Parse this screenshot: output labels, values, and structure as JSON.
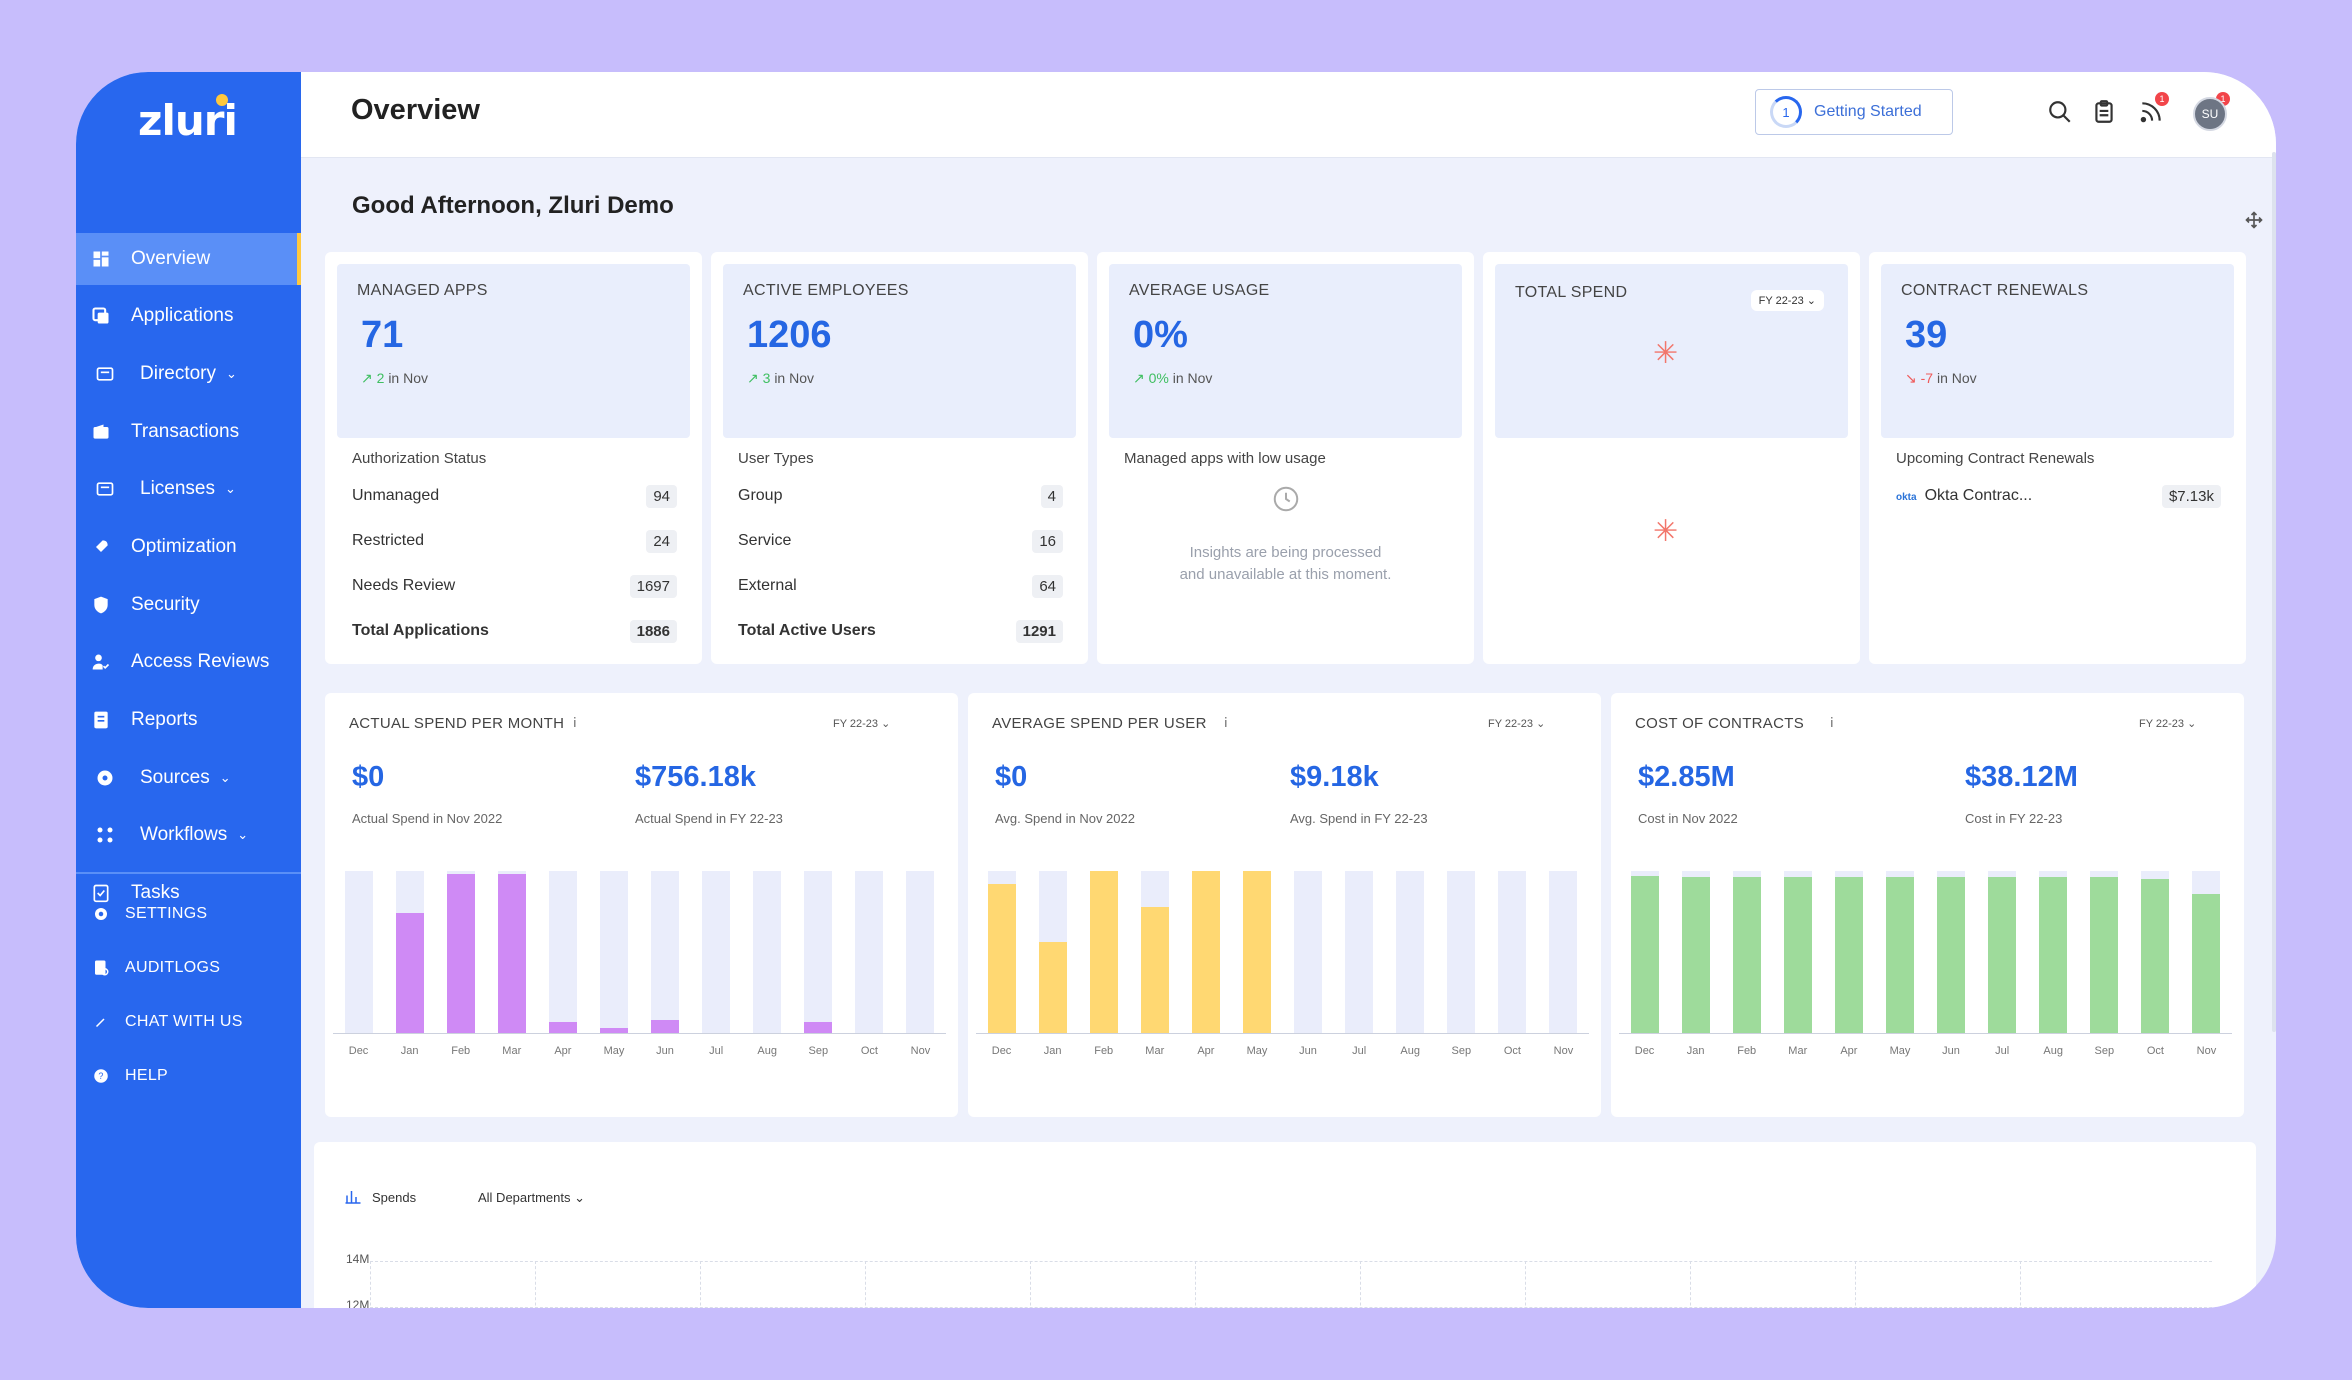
{
  "app": {
    "logo": "zluri"
  },
  "sidebar": {
    "items": [
      {
        "label": "Overview",
        "icon": "grid-icon",
        "active": true
      },
      {
        "label": "Applications",
        "icon": "apps-icon"
      },
      {
        "label": "Directory",
        "icon": "directory-icon",
        "chevron": true
      },
      {
        "label": "Transactions",
        "icon": "wallet-icon"
      },
      {
        "label": "Licenses",
        "icon": "license-icon",
        "chevron": true
      },
      {
        "label": "Optimization",
        "icon": "rocket-icon"
      },
      {
        "label": "Security",
        "icon": "shield-icon"
      },
      {
        "label": "Access Reviews",
        "icon": "user-check-icon"
      },
      {
        "label": "Reports",
        "icon": "report-icon"
      },
      {
        "label": "Sources",
        "icon": "sources-icon",
        "chevron": true
      },
      {
        "label": "Workflows",
        "icon": "workflow-icon",
        "chevron": true
      },
      {
        "label": "Tasks",
        "icon": "tasks-icon"
      }
    ],
    "bottom": [
      {
        "label": "SETTINGS",
        "icon": "gear-icon"
      },
      {
        "label": "AUDITLOGS",
        "icon": "audit-icon"
      },
      {
        "label": "CHAT WITH US",
        "icon": "chat-icon"
      },
      {
        "label": "HELP",
        "icon": "help-icon"
      }
    ]
  },
  "header": {
    "title": "Overview",
    "getting_started": "Getting Started",
    "getting_started_step": "1",
    "avatar_initials": "SU",
    "badges": {
      "feed": "1",
      "bell": "1"
    }
  },
  "greeting": "Good Afternoon, Zluri Demo",
  "cards": {
    "managed_apps": {
      "title": "MANAGED APPS",
      "value": "71",
      "delta": "2",
      "delta_suffix": "in Nov",
      "section": "Authorization Status",
      "rows": [
        {
          "label": "Unmanaged",
          "value": "94"
        },
        {
          "label": "Restricted",
          "value": "24"
        },
        {
          "label": "Needs Review",
          "value": "1697"
        },
        {
          "label": "Total Applications",
          "value": "1886",
          "bold": true
        }
      ]
    },
    "active_employees": {
      "title": "ACTIVE EMPLOYEES",
      "value": "1206",
      "delta": "3",
      "delta_suffix": "in Nov",
      "section": "User Types",
      "rows": [
        {
          "label": "Group",
          "value": "4"
        },
        {
          "label": "Service",
          "value": "16"
        },
        {
          "label": "External",
          "value": "64"
        },
        {
          "label": "Total Active Users",
          "value": "1291",
          "bold": true
        }
      ]
    },
    "average_usage": {
      "title": "AVERAGE USAGE",
      "value": "0%",
      "delta": "0%",
      "delta_suffix": "in Nov",
      "section": "Managed apps with low usage",
      "message_line1": "Insights are being processed",
      "message_line2": "and unavailable at this moment."
    },
    "total_spend": {
      "title": "TOTAL SPEND",
      "fy": "FY 22-23"
    },
    "contract_renewals": {
      "title": "CONTRACT RENEWALS",
      "value": "39",
      "delta": "-7",
      "delta_suffix": "in Nov",
      "section": "Upcoming Contract Renewals",
      "item_logo": "okta",
      "item_label": "Okta Contrac...",
      "item_value": "$7.13k"
    }
  },
  "charts": [
    {
      "title": "ACTUAL SPEND PER MONTH",
      "fy": "FY 22-23",
      "left_value": "$0",
      "left_caption": "Actual Spend in Nov 2022",
      "right_value": "$756.18k",
      "right_caption": "Actual Spend in FY 22-23",
      "color": "#cf8af5"
    },
    {
      "title": "AVERAGE SPEND PER USER",
      "fy": "FY 22-23",
      "left_value": "$0",
      "left_caption": "Avg. Spend in Nov 2022",
      "right_value": "$9.18k",
      "right_caption": "Avg. Spend in FY 22-23",
      "color": "#ffd872"
    },
    {
      "title": "COST OF CONTRACTS",
      "fy": "FY 22-23",
      "left_value": "$2.85M",
      "left_caption": "Cost in Nov 2022",
      "right_value": "$38.12M",
      "right_caption": "Cost in FY 22-23",
      "color": "#9edb9b"
    }
  ],
  "chart_data": [
    {
      "type": "bar",
      "title": "ACTUAL SPEND PER MONTH",
      "categories": [
        "Dec",
        "Jan",
        "Feb",
        "Mar",
        "Apr",
        "May",
        "Jun",
        "Jul",
        "Aug",
        "Sep",
        "Oct",
        "Nov"
      ],
      "series": [
        {
          "values": [
            0,
            0.74,
            0.98,
            0.98,
            0.07,
            0.03,
            0.08,
            0,
            0,
            0.07,
            0,
            0
          ]
        }
      ],
      "ylim": [
        0,
        1
      ]
    },
    {
      "type": "bar",
      "title": "AVERAGE SPEND PER USER",
      "categories": [
        "Dec",
        "Jan",
        "Feb",
        "Mar",
        "Apr",
        "May",
        "Jun",
        "Jul",
        "Aug",
        "Sep",
        "Oct",
        "Nov"
      ],
      "series": [
        {
          "values": [
            0.92,
            0.56,
            1.0,
            0.78,
            1.0,
            1.0,
            0,
            0,
            0,
            0,
            0,
            0
          ]
        }
      ],
      "ylim": [
        0,
        1
      ]
    },
    {
      "type": "bar",
      "title": "COST OF CONTRACTS",
      "categories": [
        "Dec",
        "Jan",
        "Feb",
        "Mar",
        "Apr",
        "May",
        "Jun",
        "Jul",
        "Aug",
        "Sep",
        "Oct",
        "Nov"
      ],
      "series": [
        {
          "values": [
            0.97,
            0.96,
            0.96,
            0.96,
            0.96,
            0.96,
            0.96,
            0.96,
            0.96,
            0.96,
            0.95,
            0.86
          ]
        }
      ],
      "ylim": [
        0,
        1
      ]
    }
  ],
  "spends": {
    "label": "Spends",
    "dropdown": "All Departments",
    "yticks": [
      "14M",
      "12M"
    ]
  }
}
